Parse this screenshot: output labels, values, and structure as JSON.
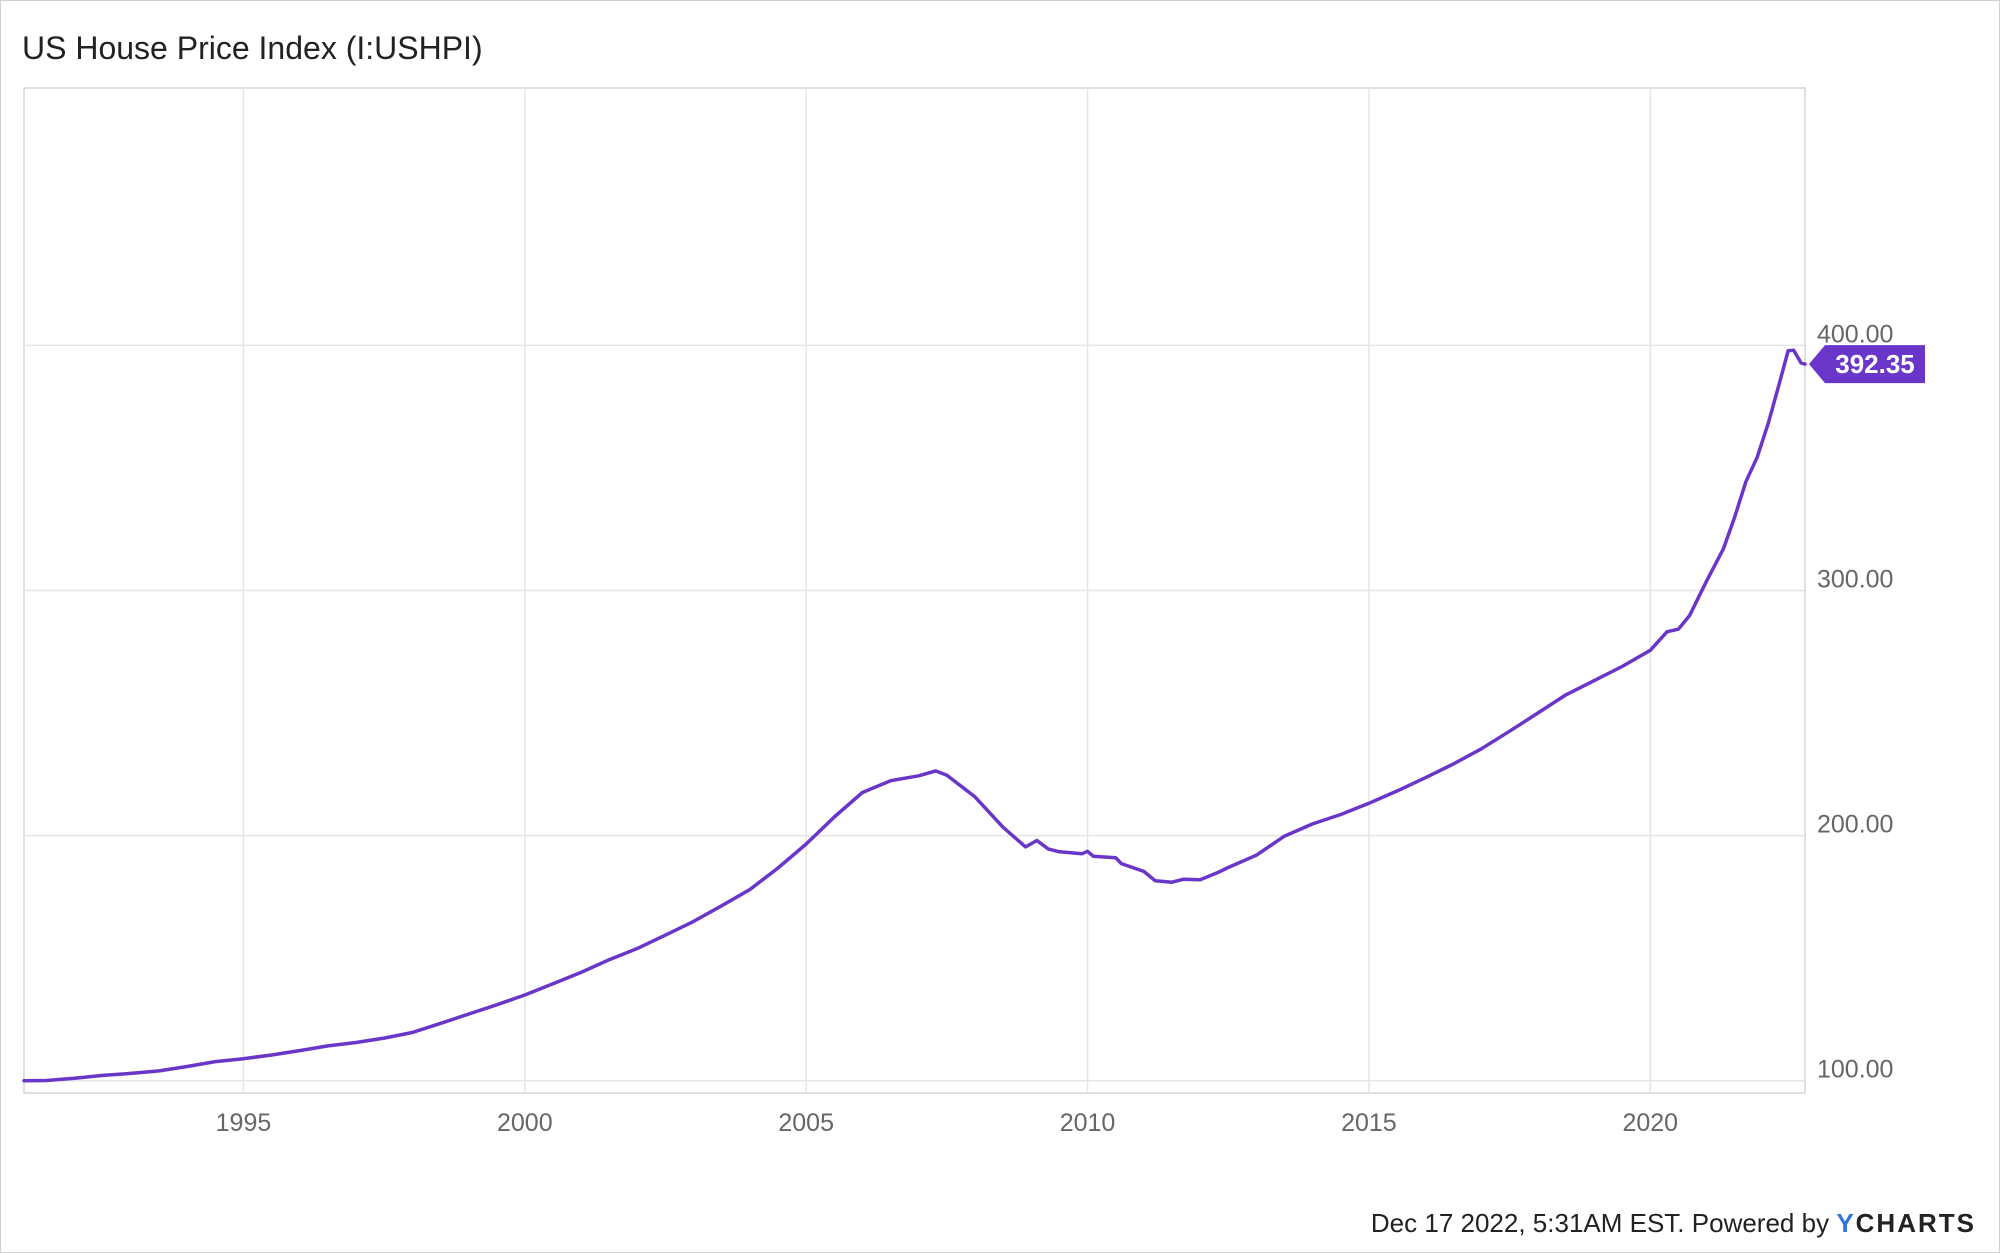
{
  "header": {
    "title": "US House Price Index (I:USHPI)"
  },
  "footer": {
    "timestamp_text": "Dec 17 2022, 5:31AM EST.",
    "powered_by": "Powered by",
    "brand_y": "Y",
    "brand_rest": "CHARTS"
  },
  "colors": {
    "line": "#6a35c9",
    "grid": "#e6e6e6",
    "axis_text": "#666666",
    "brand_blue": "#2f76d6"
  },
  "chart_data": {
    "type": "line",
    "title": "US House Price Index (I:USHPI)",
    "xlabel": "",
    "ylabel": "",
    "grid": true,
    "xlim": [
      1991.1,
      2022.75
    ],
    "ylim": [
      95,
      505
    ],
    "x_ticks": [
      {
        "value": 1995,
        "label": "1995"
      },
      {
        "value": 2000,
        "label": "2000"
      },
      {
        "value": 2005,
        "label": "2005"
      },
      {
        "value": 2010,
        "label": "2010"
      },
      {
        "value": 2015,
        "label": "2015"
      },
      {
        "value": 2020,
        "label": "2020"
      }
    ],
    "y_ticks": [
      {
        "value": 100,
        "label": "100.00"
      },
      {
        "value": 200,
        "label": "200.00"
      },
      {
        "value": 300,
        "label": "300.00"
      },
      {
        "value": 400,
        "label": "400.00"
      }
    ],
    "last_value_label": "392.35",
    "last_value": 392.35,
    "series": [
      {
        "name": "",
        "points": [
          [
            1991.1,
            100.0
          ],
          [
            1991.5,
            100.1
          ],
          [
            1992.0,
            101.0
          ],
          [
            1992.5,
            102.2
          ],
          [
            1993.0,
            103.0
          ],
          [
            1993.5,
            104.0
          ],
          [
            1994.0,
            105.8
          ],
          [
            1994.5,
            107.8
          ],
          [
            1995.0,
            109.0
          ],
          [
            1995.5,
            110.5
          ],
          [
            1996.0,
            112.3
          ],
          [
            1996.5,
            114.2
          ],
          [
            1997.0,
            115.6
          ],
          [
            1997.5,
            117.4
          ],
          [
            1998.0,
            119.7
          ],
          [
            1998.5,
            123.4
          ],
          [
            1999.0,
            127.2
          ],
          [
            1999.5,
            131.0
          ],
          [
            2000.0,
            135.0
          ],
          [
            2000.5,
            139.6
          ],
          [
            2001.0,
            144.2
          ],
          [
            2001.5,
            149.4
          ],
          [
            2002.0,
            154.0
          ],
          [
            2002.5,
            159.4
          ],
          [
            2003.0,
            165.0
          ],
          [
            2003.5,
            171.4
          ],
          [
            2004.0,
            178.0
          ],
          [
            2004.5,
            186.8
          ],
          [
            2005.0,
            196.6
          ],
          [
            2005.5,
            207.6
          ],
          [
            2006.0,
            217.6
          ],
          [
            2006.5,
            222.4
          ],
          [
            2007.0,
            224.4
          ],
          [
            2007.3,
            226.4
          ],
          [
            2007.5,
            224.6
          ],
          [
            2008.0,
            215.8
          ],
          [
            2008.5,
            203.4
          ],
          [
            2008.9,
            195.4
          ],
          [
            2009.1,
            198.0
          ],
          [
            2009.3,
            194.6
          ],
          [
            2009.5,
            193.4
          ],
          [
            2009.9,
            192.6
          ],
          [
            2010.0,
            193.6
          ],
          [
            2010.1,
            191.6
          ],
          [
            2010.5,
            191.0
          ],
          [
            2010.6,
            188.6
          ],
          [
            2011.0,
            185.4
          ],
          [
            2011.2,
            181.6
          ],
          [
            2011.5,
            181.0
          ],
          [
            2011.7,
            182.2
          ],
          [
            2012.0,
            182.0
          ],
          [
            2012.3,
            184.8
          ],
          [
            2012.5,
            187.0
          ],
          [
            2013.0,
            192.0
          ],
          [
            2013.5,
            199.8
          ],
          [
            2014.0,
            204.8
          ],
          [
            2014.5,
            208.6
          ],
          [
            2015.0,
            213.2
          ],
          [
            2015.5,
            218.2
          ],
          [
            2016.0,
            223.6
          ],
          [
            2016.5,
            229.2
          ],
          [
            2017.0,
            235.4
          ],
          [
            2017.5,
            242.6
          ],
          [
            2018.0,
            250.0
          ],
          [
            2018.5,
            257.4
          ],
          [
            2019.0,
            263.2
          ],
          [
            2019.5,
            269.0
          ],
          [
            2020.0,
            275.6
          ],
          [
            2020.3,
            283.2
          ],
          [
            2020.5,
            284.2
          ],
          [
            2020.7,
            289.8
          ],
          [
            2021.0,
            303.8
          ],
          [
            2021.3,
            317.0
          ],
          [
            2021.5,
            330.0
          ],
          [
            2021.7,
            344.4
          ],
          [
            2021.9,
            354.4
          ],
          [
            2022.1,
            368.4
          ],
          [
            2022.3,
            385.0
          ],
          [
            2022.45,
            397.8
          ],
          [
            2022.55,
            398.0
          ],
          [
            2022.68,
            392.8
          ],
          [
            2022.75,
            392.35
          ]
        ]
      }
    ]
  }
}
